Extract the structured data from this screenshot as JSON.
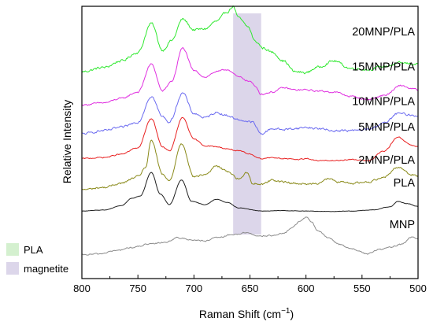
{
  "chart_data": {
    "type": "line",
    "xlabel": "Raman Shift (cm",
    "xlabel_sup": "−1",
    "xlabel_close": ")",
    "ylabel": "Relative Intensity",
    "xlim": [
      800,
      500
    ],
    "xticks": [
      800,
      750,
      700,
      650,
      600,
      550,
      500
    ],
    "y_tick_labels": false,
    "grid": false,
    "highlight_bands": [
      {
        "name": "magnetite",
        "x_range": [
          665,
          640
        ],
        "color": "#dcd6ea"
      }
    ],
    "legend": {
      "placement": "bottom-left-outside",
      "entries": [
        {
          "label": "PLA",
          "color": "#d4f0cf"
        },
        {
          "label": "magnetite",
          "color": "#dcd6ea"
        }
      ]
    },
    "series": [
      {
        "name": "20MNP/PLA",
        "color": "#2ee82e",
        "baseline": 9.4,
        "noise": 0.09,
        "points": [
          [
            800,
            0.05
          ],
          [
            780,
            0.25
          ],
          [
            765,
            0.55
          ],
          [
            750,
            0.95
          ],
          [
            738,
            2.3
          ],
          [
            728,
            1.05
          ],
          [
            720,
            1.5
          ],
          [
            710,
            2.5
          ],
          [
            700,
            2.0
          ],
          [
            690,
            2.05
          ],
          [
            680,
            2.4
          ],
          [
            670,
            2.85
          ],
          [
            665,
            3.1
          ],
          [
            660,
            2.55
          ],
          [
            652,
            2.15
          ],
          [
            645,
            1.45
          ],
          [
            638,
            1.15
          ],
          [
            630,
            0.95
          ],
          [
            620,
            0.55
          ],
          [
            610,
            0.05
          ],
          [
            600,
            0.0
          ],
          [
            590,
            0.25
          ],
          [
            575,
            0.55
          ],
          [
            560,
            0.2
          ],
          [
            545,
            0.15
          ],
          [
            530,
            0.3
          ],
          [
            515,
            0.45
          ],
          [
            500,
            0.4
          ]
        ]
      },
      {
        "name": "15MNP/PLA",
        "color": "#e030e0",
        "baseline": 7.9,
        "noise": 0.06,
        "points": [
          [
            800,
            0.0
          ],
          [
            780,
            0.1
          ],
          [
            765,
            0.3
          ],
          [
            750,
            0.6
          ],
          [
            738,
            1.9
          ],
          [
            728,
            0.65
          ],
          [
            720,
            1.1
          ],
          [
            710,
            2.65
          ],
          [
            700,
            1.6
          ],
          [
            690,
            1.3
          ],
          [
            680,
            1.55
          ],
          [
            670,
            1.65
          ],
          [
            660,
            1.3
          ],
          [
            650,
            1.1
          ],
          [
            645,
            0.85
          ],
          [
            640,
            0.5
          ],
          [
            630,
            0.6
          ],
          [
            620,
            0.8
          ],
          [
            610,
            0.7
          ],
          [
            600,
            0.7
          ],
          [
            590,
            0.65
          ],
          [
            575,
            0.6
          ],
          [
            560,
            0.4
          ],
          [
            545,
            0.25
          ],
          [
            530,
            0.45
          ],
          [
            515,
            0.9
          ],
          [
            505,
            0.75
          ],
          [
            500,
            0.7
          ]
        ]
      },
      {
        "name": "10MNP/PLA",
        "color": "#6a6af0",
        "baseline": 6.55,
        "noise": 0.08,
        "points": [
          [
            800,
            0.0
          ],
          [
            780,
            0.15
          ],
          [
            765,
            0.3
          ],
          [
            750,
            0.55
          ],
          [
            738,
            1.75
          ],
          [
            728,
            0.8
          ],
          [
            722,
            0.55
          ],
          [
            710,
            1.9
          ],
          [
            700,
            0.95
          ],
          [
            690,
            0.75
          ],
          [
            680,
            1.0
          ],
          [
            670,
            0.85
          ],
          [
            660,
            0.65
          ],
          [
            648,
            0.55
          ],
          [
            640,
            0.0
          ],
          [
            630,
            0.25
          ],
          [
            620,
            0.2
          ],
          [
            610,
            0.25
          ],
          [
            600,
            0.3
          ],
          [
            590,
            0.25
          ],
          [
            575,
            0.15
          ],
          [
            560,
            0.15
          ],
          [
            545,
            0.2
          ],
          [
            530,
            0.5
          ],
          [
            518,
            0.95
          ],
          [
            500,
            0.85
          ]
        ]
      },
      {
        "name": "5MNP/PLA",
        "color": "#e82020",
        "baseline": 5.4,
        "noise": 0.04,
        "points": [
          [
            800,
            0.0
          ],
          [
            780,
            0.05
          ],
          [
            765,
            0.2
          ],
          [
            750,
            0.5
          ],
          [
            738,
            1.85
          ],
          [
            728,
            0.55
          ],
          [
            722,
            0.35
          ],
          [
            710,
            1.9
          ],
          [
            700,
            0.9
          ],
          [
            690,
            0.6
          ],
          [
            680,
            0.55
          ],
          [
            670,
            0.45
          ],
          [
            660,
            0.35
          ],
          [
            650,
            0.2
          ],
          [
            640,
            0.0
          ],
          [
            630,
            0.05
          ],
          [
            620,
            0.0
          ],
          [
            610,
            -0.05
          ],
          [
            600,
            0.0
          ],
          [
            590,
            -0.1
          ],
          [
            575,
            -0.1
          ],
          [
            560,
            -0.05
          ],
          [
            545,
            -0.1
          ],
          [
            530,
            0.35
          ],
          [
            518,
            1.0
          ],
          [
            505,
            0.6
          ],
          [
            500,
            0.55
          ]
        ]
      },
      {
        "name": "2MNP/PLA",
        "color": "#8a8a1a",
        "baseline": 3.95,
        "noise": 0.07,
        "points": [
          [
            800,
            0.0
          ],
          [
            780,
            0.1
          ],
          [
            765,
            0.3
          ],
          [
            750,
            0.6
          ],
          [
            743,
            1.05
          ],
          [
            738,
            2.3
          ],
          [
            728,
            0.7
          ],
          [
            722,
            0.4
          ],
          [
            711,
            2.15
          ],
          [
            700,
            0.6
          ],
          [
            690,
            0.7
          ],
          [
            680,
            1.1
          ],
          [
            670,
            0.85
          ],
          [
            660,
            0.5
          ],
          [
            652,
            0.8
          ],
          [
            648,
            0.3
          ],
          [
            640,
            0.25
          ],
          [
            630,
            0.45
          ],
          [
            620,
            0.35
          ],
          [
            610,
            0.3
          ],
          [
            600,
            0.25
          ],
          [
            590,
            0.3
          ],
          [
            580,
            0.5
          ],
          [
            570,
            0.35
          ],
          [
            560,
            0.3
          ],
          [
            545,
            0.35
          ],
          [
            530,
            0.6
          ],
          [
            518,
            1.05
          ],
          [
            505,
            0.7
          ],
          [
            500,
            0.6
          ]
        ]
      },
      {
        "name": "PLA",
        "color": "#1e1e1e",
        "baseline": 2.95,
        "noise": 0.015,
        "points": [
          [
            800,
            0.0
          ],
          [
            780,
            0.05
          ],
          [
            765,
            0.25
          ],
          [
            755,
            0.6
          ],
          [
            748,
            0.7
          ],
          [
            738,
            1.8
          ],
          [
            730,
            0.8
          ],
          [
            722,
            0.3
          ],
          [
            711,
            1.45
          ],
          [
            702,
            0.45
          ],
          [
            690,
            0.3
          ],
          [
            680,
            0.55
          ],
          [
            670,
            0.4
          ],
          [
            660,
            0.15
          ],
          [
            640,
            0.0
          ],
          [
            620,
            0.02
          ],
          [
            600,
            0.0
          ],
          [
            580,
            -0.02
          ],
          [
            560,
            0.0
          ],
          [
            540,
            0.05
          ],
          [
            525,
            0.2
          ],
          [
            518,
            0.45
          ],
          [
            510,
            0.35
          ],
          [
            500,
            0.22
          ]
        ]
      },
      {
        "name": "MNP",
        "color": "#8c8c8c",
        "baseline": 0.9,
        "noise": 0.05,
        "points": [
          [
            800,
            0.0
          ],
          [
            785,
            0.05
          ],
          [
            770,
            0.2
          ],
          [
            755,
            0.35
          ],
          [
            740,
            0.5
          ],
          [
            725,
            0.6
          ],
          [
            715,
            0.8
          ],
          [
            700,
            0.7
          ],
          [
            690,
            0.65
          ],
          [
            680,
            0.8
          ],
          [
            665,
            0.95
          ],
          [
            652,
            1.05
          ],
          [
            645,
            0.9
          ],
          [
            630,
            0.9
          ],
          [
            620,
            1.0
          ],
          [
            612,
            1.3
          ],
          [
            605,
            1.6
          ],
          [
            600,
            1.75
          ],
          [
            595,
            1.55
          ],
          [
            590,
            1.15
          ],
          [
            580,
            0.8
          ],
          [
            570,
            0.5
          ],
          [
            560,
            0.3
          ],
          [
            545,
            0.05
          ],
          [
            535,
            0.25
          ],
          [
            525,
            0.35
          ],
          [
            515,
            0.5
          ],
          [
            505,
            0.85
          ],
          [
            500,
            0.75
          ]
        ]
      }
    ]
  }
}
